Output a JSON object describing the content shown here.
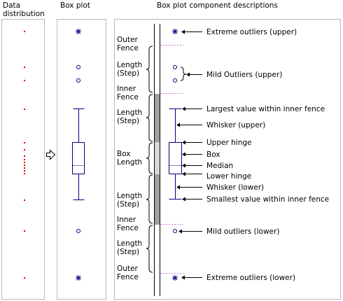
{
  "headers": {
    "data_distribution_line1": "Data",
    "data_distribution_line2": "distribution",
    "box_plot": "Box plot",
    "descriptions": "Box plot component descriptions"
  },
  "left_labels": {
    "outer_fence_upper": [
      "Outer",
      "Fence"
    ],
    "length_step_upper": [
      "Length",
      "(Step)"
    ],
    "inner_fence_upper": [
      "Inner",
      "Fence"
    ],
    "length_step_mid_upper": [
      "Length",
      "(Step)"
    ],
    "box_length": [
      "Box",
      "Length"
    ],
    "length_step_mid_lower": [
      "Length",
      "(Step)"
    ],
    "inner_fence_lower": [
      "Inner",
      "Fence"
    ],
    "length_step_lower": [
      "Length",
      "(Step)"
    ],
    "outer_fence_lower": [
      "Outer",
      "Fence"
    ]
  },
  "descriptions": {
    "extreme_outliers_upper": "Extreme outliers (upper)",
    "mild_outliers_upper": "Mild Outliers (upper)",
    "largest_value": "Largest value within inner fence",
    "whisker_upper": "Whisker (upper)",
    "upper_hinge": "Upper hinge",
    "box": "Box",
    "median": "Median",
    "lower_hinge": "Lower hinge",
    "whisker_lower": "Whisker (lower)",
    "smallest_value": "Smallest value within inner fence",
    "mild_outliers_lower": "Mild outliers (lower)",
    "extreme_outliers_lower": "Extreme outliers (lower)"
  },
  "colors": {
    "data_point": "#cc0000",
    "box_plot": "#000080",
    "fence_marker": "#d070d0",
    "panel_border": "#b8b8b8",
    "scale_fill": "#a0a0a0"
  },
  "icons": {
    "extreme_outlier": "asterisk-marker",
    "mild_outlier": "open-circle-marker",
    "transform_arrow": "hollow-right-arrow-icon"
  }
}
